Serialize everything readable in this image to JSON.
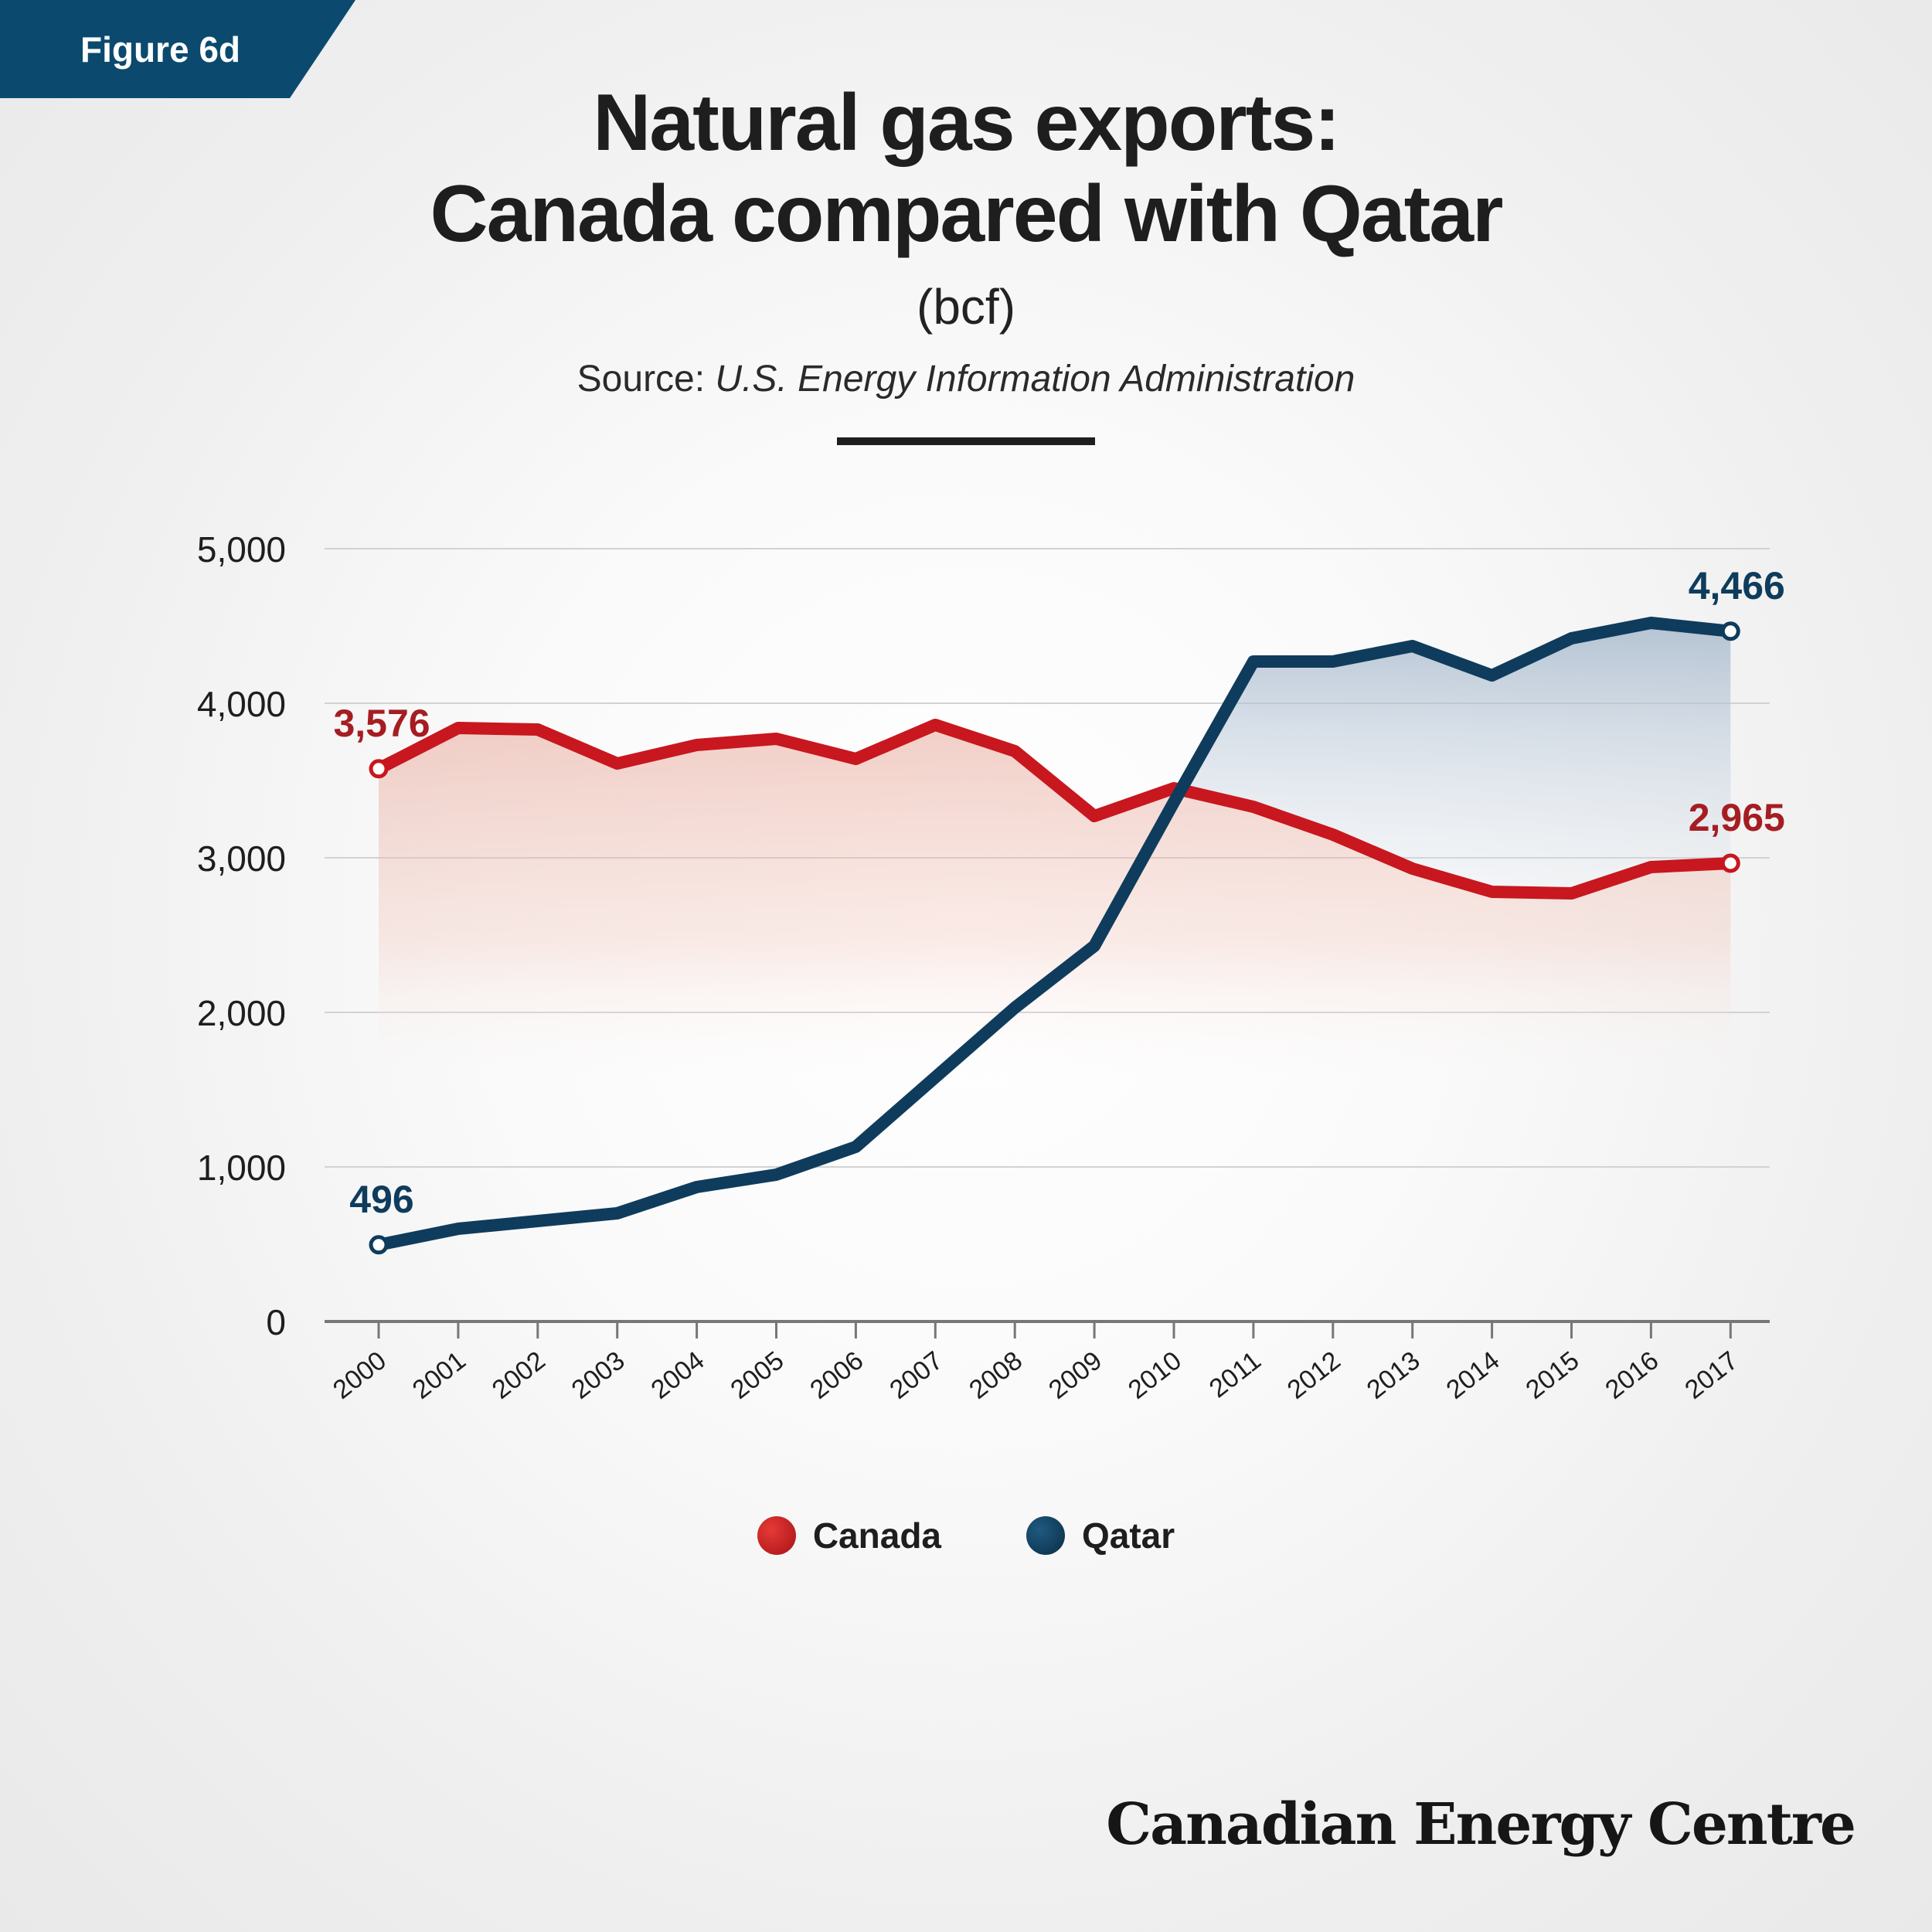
{
  "badge": {
    "label": "Figure 6d",
    "color": "#0b4a6e"
  },
  "title": {
    "line1": "Natural gas exports:",
    "line2": "Canada compared with Qatar"
  },
  "subtitle": "(bcf)",
  "source": {
    "prefix": "Source: ",
    "text": "U.S. Energy Information Administration"
  },
  "brand": "Canadian Energy Centre",
  "chart_data": {
    "type": "line",
    "x": [
      "2000",
      "2001",
      "2002",
      "2003",
      "2004",
      "2005",
      "2006",
      "2007",
      "2008",
      "2009",
      "2010",
      "2011",
      "2012",
      "2013",
      "2014",
      "2015",
      "2016",
      "2017"
    ],
    "ylim": [
      0,
      5000
    ],
    "yticks": [
      0,
      1000,
      2000,
      3000,
      4000,
      5000
    ],
    "ytick_labels": [
      "0",
      "1,000",
      "2,000",
      "3,000",
      "4,000",
      "5,000"
    ],
    "grid": true,
    "legend_position": "bottom",
    "series": [
      {
        "name": "Canada",
        "color": "#c8171e",
        "label_color": "#a51d22",
        "values": [
          3576,
          3840,
          3830,
          3610,
          3730,
          3770,
          3640,
          3860,
          3690,
          3270,
          3450,
          3330,
          3150,
          2930,
          2780,
          2770,
          2940,
          2965
        ],
        "start_label": "3,576",
        "end_label": "2,965"
      },
      {
        "name": "Qatar",
        "color": "#0f3c5c",
        "label_color": "#0f3c5c",
        "values": [
          496,
          600,
          650,
          700,
          870,
          950,
          1130,
          1580,
          2030,
          2430,
          3360,
          4270,
          4270,
          4370,
          4180,
          4420,
          4520,
          4466
        ],
        "start_label": "496",
        "end_label": "4,466"
      }
    ]
  }
}
